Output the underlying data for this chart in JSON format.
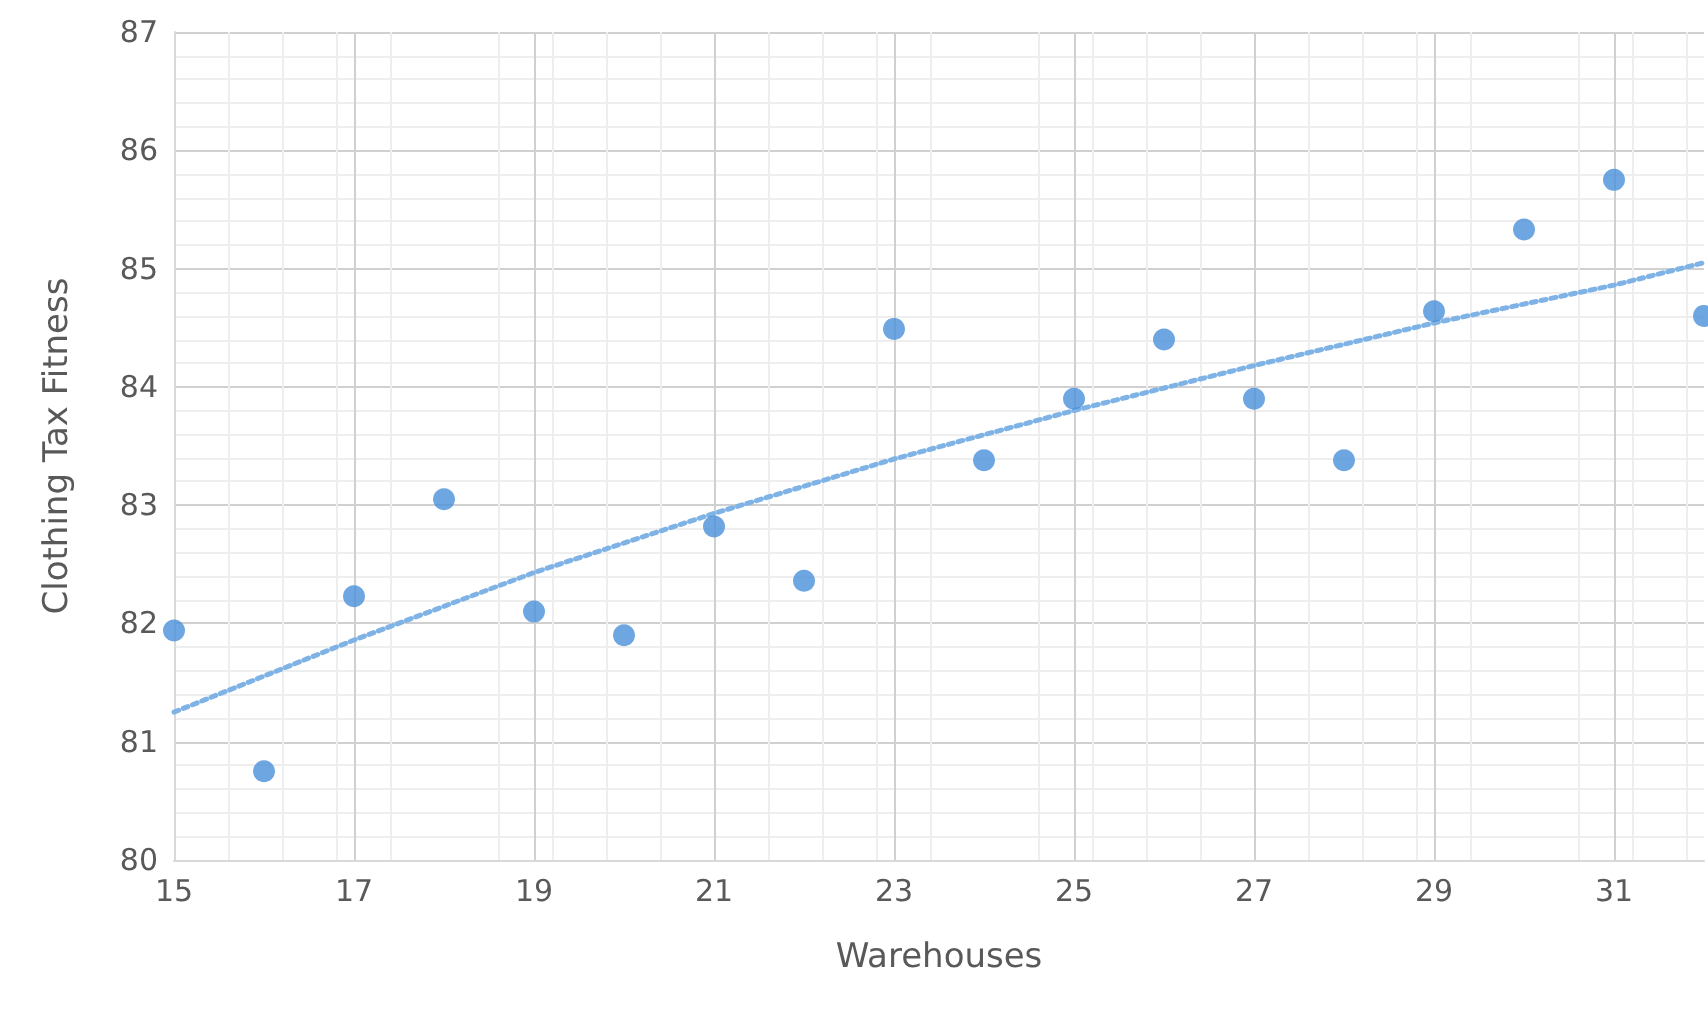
{
  "chart_data": {
    "type": "scatter",
    "xlabel": "Warehouses",
    "ylabel": "Clothing Tax Fitness",
    "xlim": [
      15,
      32
    ],
    "xticks": [
      15,
      17,
      19,
      21,
      23,
      25,
      27,
      29,
      31
    ],
    "ylim": [
      80,
      87
    ],
    "yticks": [
      80,
      81,
      82,
      83,
      84,
      85,
      86,
      87
    ],
    "grid": true,
    "marker": "circle",
    "series": [
      {
        "type": "scatter",
        "color": "#4a90d9",
        "x": [
          15,
          16,
          17,
          18,
          19,
          20,
          21,
          22,
          23,
          24,
          25,
          26,
          27,
          28,
          29,
          30,
          31,
          32
        ],
        "values": [
          81.94,
          80.75,
          82.23,
          83.05,
          82.1,
          81.9,
          82.82,
          82.36,
          84.49,
          83.38,
          83.9,
          84.4,
          83.9,
          83.38,
          84.64,
          85.33,
          85.75,
          84.6
        ]
      },
      {
        "type": "line",
        "color": "#7fb3e6",
        "line_style": "dotted",
        "marker": "none",
        "x": [
          15,
          17,
          19,
          21,
          23,
          25,
          27,
          29,
          31,
          32
        ],
        "values": [
          81.25,
          81.86,
          82.43,
          82.93,
          83.39,
          83.8,
          84.18,
          84.54,
          84.86,
          85.05
        ]
      }
    ]
  }
}
